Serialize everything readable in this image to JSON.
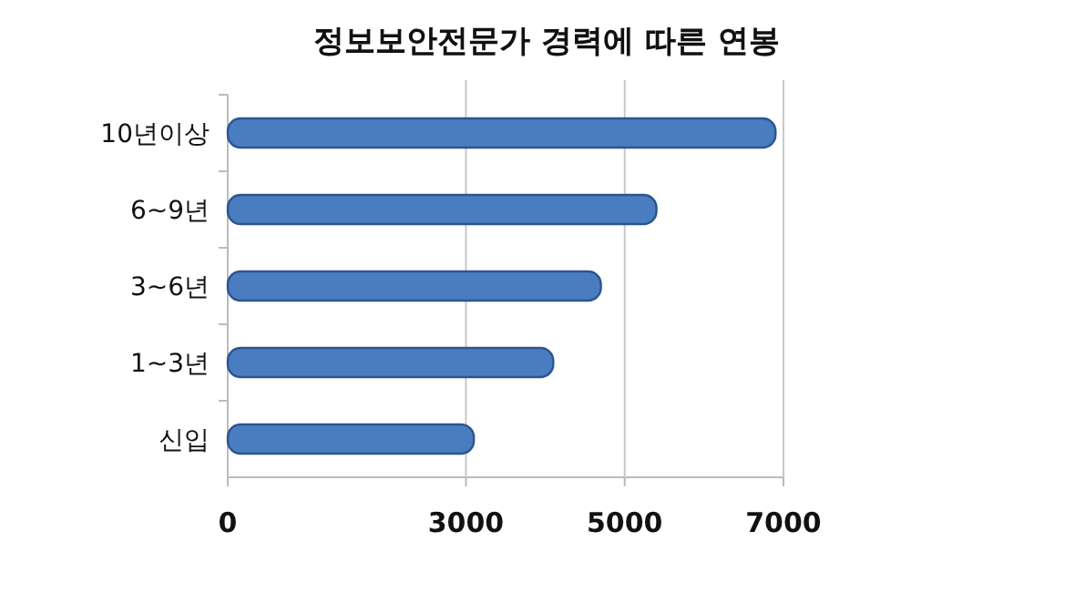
{
  "chart_data": {
    "type": "bar",
    "orientation": "horizontal",
    "title": "정보보안전문가 경력에 따른 연봉",
    "categories": [
      "10년이상",
      "6~9년",
      "3~6년",
      "1~3년",
      "신입"
    ],
    "values": [
      6900,
      5400,
      4700,
      4100,
      3100
    ],
    "color": "#4a7cc0",
    "xlim": [
      0,
      7000
    ],
    "xticks": [
      0,
      3000,
      5000,
      7000
    ],
    "grid": "x"
  }
}
